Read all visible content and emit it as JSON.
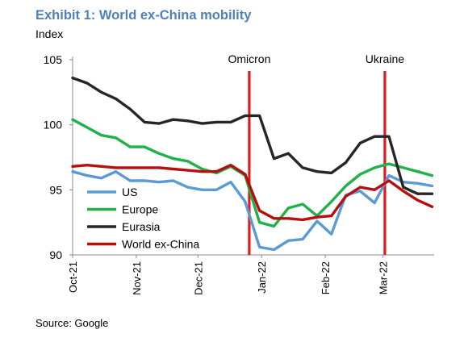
{
  "header": {
    "title": "Exhibit 1: World ex-China mobility",
    "units": "Index"
  },
  "footer": {
    "source": "Source: Google"
  },
  "colors": {
    "US": "#5b9bd5",
    "Europe": "#1fb24a",
    "Eurasia": "#262626",
    "World ex-China": "#b50f0f",
    "events": "#e31a1c"
  },
  "chart_data": {
    "type": "line",
    "title": "Exhibit 1: World ex-China mobility",
    "ylabel": "Index",
    "xlabel": "",
    "ylim": [
      90,
      105
    ],
    "yticks": [
      90,
      95,
      100,
      105
    ],
    "xlim": [
      "2021-10-01",
      "2022-03-26"
    ],
    "xticks": [
      {
        "date": "2021-10-01",
        "label": "Oct-21"
      },
      {
        "date": "2021-11-01",
        "label": "Nov-21"
      },
      {
        "date": "2021-12-01",
        "label": "Dec-21"
      },
      {
        "date": "2022-01-01",
        "label": "Jan-22"
      },
      {
        "date": "2022-02-01",
        "label": "Feb-22"
      },
      {
        "date": "2022-03-01",
        "label": "Mar-22"
      }
    ],
    "grid": false,
    "legend_position": "bottom-left",
    "annotations": [
      {
        "label": "Omicron",
        "date": "2021-12-26"
      },
      {
        "label": "Ukraine",
        "date": "2022-03-02"
      }
    ],
    "x": [
      "2021-10-01",
      "2021-10-08",
      "2021-10-15",
      "2021-10-22",
      "2021-10-29",
      "2021-11-05",
      "2021-11-12",
      "2021-11-19",
      "2021-11-26",
      "2021-12-03",
      "2021-12-10",
      "2021-12-17",
      "2021-12-24",
      "2021-12-31",
      "2022-01-07",
      "2022-01-14",
      "2022-01-21",
      "2022-01-28",
      "2022-02-04",
      "2022-02-11",
      "2022-02-18",
      "2022-02-25",
      "2022-03-04",
      "2022-03-11",
      "2022-03-18",
      "2022-03-25"
    ],
    "series": [
      {
        "name": "US",
        "values": [
          96.4,
          96.1,
          95.9,
          96.4,
          95.7,
          95.7,
          95.6,
          95.7,
          95.2,
          95.0,
          95.0,
          95.6,
          94.1,
          90.6,
          90.4,
          91.1,
          91.2,
          92.6,
          91.6,
          94.6,
          94.9,
          94.0,
          96.1,
          95.6,
          95.5,
          95.3
        ]
      },
      {
        "name": "Europe",
        "values": [
          100.4,
          99.8,
          99.2,
          99.0,
          98.3,
          98.3,
          97.8,
          97.4,
          97.2,
          96.6,
          96.3,
          96.8,
          96.1,
          92.5,
          92.2,
          93.6,
          93.9,
          93.0,
          94.1,
          95.3,
          96.2,
          96.7,
          97.0,
          96.7,
          96.4,
          96.1
        ]
      },
      {
        "name": "Eurasia",
        "values": [
          103.6,
          103.2,
          102.5,
          102.0,
          101.2,
          100.2,
          100.1,
          100.4,
          100.3,
          100.1,
          100.2,
          100.2,
          100.7,
          100.7,
          97.4,
          97.8,
          96.7,
          96.4,
          96.3,
          97.1,
          98.6,
          99.1,
          99.1,
          95.2,
          94.7,
          94.7
        ]
      },
      {
        "name": "World ex-China",
        "values": [
          96.8,
          96.9,
          96.8,
          96.7,
          96.7,
          96.7,
          96.7,
          96.6,
          96.5,
          96.4,
          96.4,
          96.9,
          96.2,
          93.4,
          92.8,
          92.8,
          92.7,
          92.9,
          93.0,
          94.5,
          95.2,
          95.0,
          95.7,
          94.9,
          94.2,
          93.7
        ]
      }
    ]
  }
}
